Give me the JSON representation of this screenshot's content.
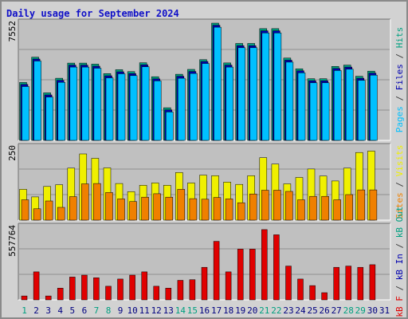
{
  "chart_data": {
    "type": "bar",
    "title": "Daily usage for September 2024",
    "days": [
      "1",
      "2",
      "3",
      "4",
      "5",
      "6",
      "7",
      "8",
      "9",
      "10",
      "11",
      "12",
      "13",
      "14",
      "15",
      "16",
      "17",
      "18",
      "19",
      "20",
      "21",
      "22",
      "23",
      "24",
      "25",
      "26",
      "27",
      "28",
      "29",
      "30",
      "31"
    ],
    "weekend_days": [
      "1",
      "7",
      "8",
      "14",
      "15",
      "21",
      "22",
      "28",
      "29"
    ],
    "panels": [
      {
        "name": "top",
        "axis_max_label": "7552",
        "ylim": [
          0,
          7552
        ],
        "series": [
          {
            "name": "Hits",
            "color": "#00a080",
            "values": [
              3730,
              5360,
              3060,
              4000,
              4980,
              4980,
              4910,
              4300,
              4550,
              4430,
              5000,
              4100,
              2100,
              4260,
              4570,
              5200,
              7552,
              4990,
              6240,
              6240,
              7200,
              7200,
              5300,
              4610,
              3970,
              3970,
              4760,
              4850,
              4130,
              4460,
              null
            ]
          },
          {
            "name": "Files",
            "color": "#0000b0",
            "values": [
              3600,
              5240,
              2930,
              3870,
              4850,
              4850,
              4780,
              4160,
              4420,
              4300,
              4870,
              3960,
              1960,
              4130,
              4440,
              5080,
              7420,
              4850,
              6100,
              6100,
              7060,
              7060,
              5170,
              4480,
              3840,
              3840,
              4630,
              4720,
              4000,
              4330,
              null
            ]
          },
          {
            "name": "Pages",
            "color": "#00c0ff",
            "values": [
              3470,
              5110,
              2790,
              3740,
              4720,
              4720,
              4650,
              4030,
              4290,
              4170,
              4740,
              3830,
              1830,
              4000,
              4310,
              4950,
              7290,
              4720,
              5970,
              5970,
              6920,
              6920,
              5040,
              4350,
              3710,
              3710,
              4500,
              4590,
              3870,
              4200,
              null
            ]
          }
        ]
      },
      {
        "name": "middle",
        "axis_max_label": "250",
        "ylim": [
          0,
          250
        ],
        "series": [
          {
            "name": "Visits",
            "color": "#f0f000",
            "values": [
              106,
              80,
              116,
              122,
              179,
              228,
              213,
              180,
              126,
              98,
              120,
              128,
              120,
              164,
              128,
              155,
              153,
              131,
              123,
              153,
              215,
              193,
              125,
              147,
              176,
              152,
              135,
              179,
              233,
              238,
              null
            ]
          },
          {
            "name": "Sites",
            "color": "#f08000",
            "values": [
              70,
              39,
              66,
              44,
              81,
              125,
              126,
              95,
              73,
              64,
              79,
              91,
              79,
              106,
              74,
              72,
              78,
              73,
              60,
              90,
              103,
              103,
              99,
              70,
              82,
              82,
              70,
              88,
              104,
              104,
              null
            ]
          }
        ]
      },
      {
        "name": "bottom",
        "axis_max_label": "557764",
        "ylim": [
          0,
          557764
        ],
        "series": [
          {
            "name": "kB In",
            "color": "#0000b0",
            "values": [
              null,
              null,
              null,
              null,
              null,
              null,
              null,
              null,
              null,
              null,
              null,
              null,
              null,
              null,
              null,
              null,
              null,
              null,
              null,
              null,
              null,
              null,
              null,
              null,
              null,
              null,
              null,
              null,
              null,
              null,
              null
            ]
          },
          {
            "name": "kB Out",
            "color": "#00a080",
            "values": [
              null,
              null,
              null,
              null,
              null,
              null,
              null,
              null,
              null,
              null,
              null,
              null,
              null,
              null,
              null,
              null,
              null,
              null,
              null,
              null,
              null,
              null,
              null,
              null,
              null,
              null,
              null,
              null,
              null,
              null,
              null
            ]
          },
          {
            "name": "kB F",
            "color": "#e00000",
            "values": [
              30000,
              215000,
              30000,
              90000,
              175000,
              190000,
              170000,
              105000,
              160000,
              190000,
              215000,
              105000,
              90000,
              150000,
              155000,
              250000,
              450000,
              215000,
              390000,
              390000,
              540000,
              500000,
              260000,
              160000,
              110000,
              55000,
              250000,
              260000,
              250000,
              270000,
              null
            ]
          }
        ]
      }
    ],
    "right_labels": [
      {
        "text": "Pages",
        "color": "#00c0ff"
      },
      {
        "text": " / ",
        "color": "#404040"
      },
      {
        "text": "Files",
        "color": "#0000b0"
      },
      {
        "text": " / ",
        "color": "#404040"
      },
      {
        "text": "Hits",
        "color": "#00a080"
      },
      {
        "text": "Sites",
        "color": "#f08000"
      },
      {
        "text": " / ",
        "color": "#404040"
      },
      {
        "text": "Visits",
        "color": "#f0f000"
      },
      {
        "text": "kB F",
        "color": "#e00000"
      },
      {
        "text": " / ",
        "color": "#404040"
      },
      {
        "text": "kB In",
        "color": "#0000b0"
      },
      {
        "text": " / ",
        "color": "#404040"
      },
      {
        "text": "kB Out",
        "color": "#00a080"
      }
    ],
    "colors": {
      "plot_bg": "#c0c0c0",
      "frame_bg": "#d2d2d2",
      "grid": "#909090",
      "weekday_label": "#000080",
      "weekend_label": "#00a080"
    }
  }
}
